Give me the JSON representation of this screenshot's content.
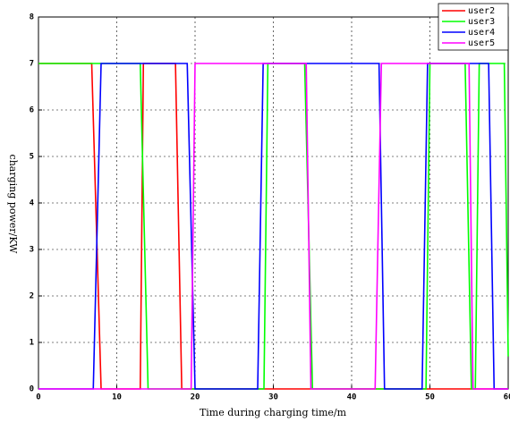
{
  "chart_data": {
    "type": "line",
    "xlabel": "Time during charging time/m",
    "ylabel": "charging power/KW",
    "xlim": [
      0,
      60
    ],
    "ylim": [
      0,
      8
    ],
    "xticks": [
      0,
      10,
      20,
      30,
      40,
      50,
      60
    ],
    "yticks": [
      0,
      1,
      2,
      3,
      4,
      5,
      6,
      7,
      8
    ],
    "grid": true,
    "legend": "upper right",
    "series": [
      {
        "name": "user2",
        "color": "#ff0000",
        "x": [
          0,
          6.8,
          8,
          13,
          13.4,
          17.5,
          18.3,
          60
        ],
        "values": [
          7,
          7,
          0,
          0,
          7,
          7,
          0,
          0
        ]
      },
      {
        "name": "user3",
        "color": "#00ff00",
        "x": [
          0,
          13,
          14,
          28.8,
          29.3,
          34,
          35,
          49.5,
          50,
          54.5,
          55.3,
          55.8,
          56.3,
          59.5,
          60
        ],
        "values": [
          7,
          7,
          0,
          0,
          7,
          7,
          0,
          0,
          7,
          7,
          0,
          0,
          7,
          7,
          0.7
        ]
      },
      {
        "name": "user4",
        "color": "#0000ff",
        "x": [
          0,
          7,
          8,
          19,
          20,
          28,
          28.7,
          43.5,
          44.2,
          49,
          49.7,
          57.5,
          58.2,
          60
        ],
        "values": [
          0,
          0,
          7,
          7,
          0,
          0,
          7,
          7,
          0,
          0,
          7,
          7,
          0,
          0
        ]
      },
      {
        "name": "user5",
        "color": "#ff00ff",
        "x": [
          0,
          19.5,
          20,
          34.2,
          34.8,
          43,
          43.8,
          55,
          55.5,
          60
        ],
        "values": [
          0,
          0,
          7,
          7,
          0,
          0,
          7,
          7,
          0,
          0
        ]
      }
    ]
  }
}
